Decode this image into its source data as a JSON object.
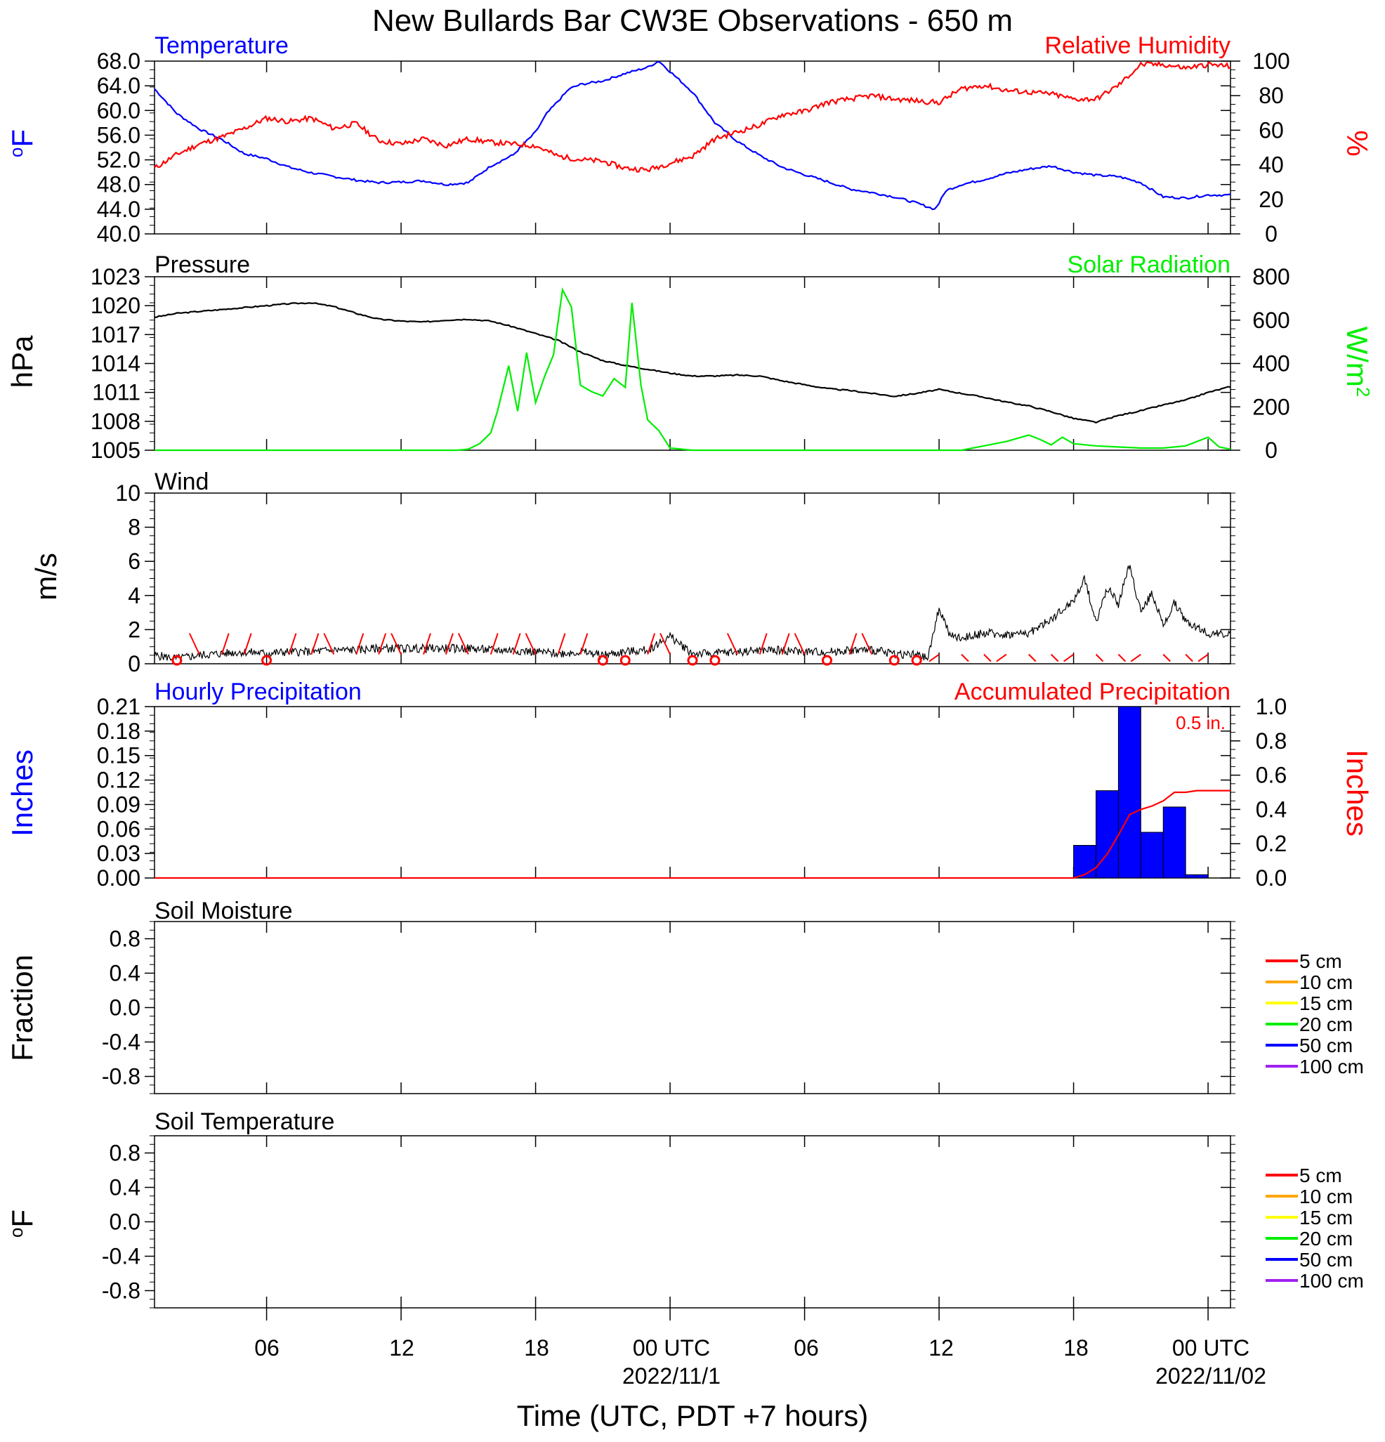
{
  "title": "New Bullards Bar CW3E Observations - 650 m",
  "xaxis": {
    "label": "Time (UTC, PDT +7 hours)",
    "ticks": [
      "06",
      "12",
      "18",
      "00 UTC",
      "06",
      "12",
      "18",
      "00 UTC"
    ],
    "dates": [
      "2022/11/1",
      "2022/11/02"
    ]
  },
  "colors": {
    "temperature": "#0000ff",
    "humidity": "#ff0000",
    "pressure": "#000000",
    "solar": "#00ee00",
    "wind": "#000000",
    "barbs": "#ff0000",
    "precip_bars": "#0000ff",
    "accum": "#ff0000"
  },
  "chart_data": [
    {
      "type": "line",
      "panel": "temperature_humidity",
      "title_left": "Temperature",
      "title_right": "Relative Humidity",
      "ylabel_left": "°F",
      "ylabel_right": "%",
      "y_left_ticks": [
        "68.0",
        "64.0",
        "60.0",
        "56.0",
        "52.0",
        "48.0",
        "44.0",
        "40.0"
      ],
      "y_left_lim": [
        40,
        68
      ],
      "y_right_ticks": [
        "100",
        "80",
        "60",
        "40",
        "20",
        "0"
      ],
      "y_right_lim": [
        0,
        100
      ],
      "x_unit": "hours since 2022-10-31 00 UTC",
      "xlim": [
        1,
        49
      ],
      "series": [
        {
          "name": "Temperature",
          "axis": "left",
          "x": [
            1,
            2,
            3,
            4,
            5,
            6,
            7,
            8,
            9,
            10,
            11,
            12,
            13,
            14,
            15,
            16,
            17,
            18,
            18.5,
            19,
            19.5,
            20,
            21,
            22,
            23,
            23.5,
            24,
            25,
            26,
            27,
            28,
            29,
            30,
            31,
            32,
            33,
            34,
            35,
            35.8,
            36,
            36.3,
            37,
            38,
            39,
            40,
            41,
            42,
            43,
            44,
            45,
            46,
            47,
            48,
            49
          ],
          "y": [
            63.5,
            59.5,
            57.0,
            55.3,
            53.0,
            52.2,
            50.8,
            49.9,
            49.3,
            48.7,
            48.3,
            48.4,
            48.6,
            48.0,
            48.3,
            51.0,
            52.8,
            56.5,
            59.5,
            61.5,
            63.5,
            64.2,
            64.8,
            66.0,
            67.0,
            68.0,
            66.3,
            63.0,
            58.0,
            55.0,
            52.7,
            50.8,
            49.6,
            48.5,
            47.3,
            46.7,
            46.0,
            45.0,
            44.0,
            45.0,
            47.0,
            48.0,
            48.8,
            49.8,
            50.5,
            51.0,
            50.0,
            49.5,
            49.3,
            48.3,
            46.0,
            45.8,
            46.3,
            46.3
          ]
        },
        {
          "name": "Relative Humidity",
          "axis": "right",
          "x": [
            1,
            2,
            3,
            4,
            5,
            6,
            7,
            8,
            9,
            10,
            11,
            12,
            13,
            14,
            15,
            16,
            17,
            18,
            19,
            20,
            21,
            22,
            23,
            24,
            25,
            26,
            27,
            28,
            29,
            30,
            31,
            32,
            33,
            34,
            35,
            36,
            37,
            38,
            39,
            40,
            41,
            42,
            43,
            44,
            45,
            46,
            47,
            48,
            49
          ],
          "y": [
            38,
            46,
            52,
            56,
            61,
            67,
            65,
            67,
            61,
            64,
            54,
            52,
            55,
            51,
            55,
            53,
            52,
            51,
            45,
            43,
            42,
            38,
            37,
            41,
            45,
            55,
            59,
            63,
            69,
            71,
            76,
            78,
            80,
            78,
            77,
            76,
            84,
            86,
            83,
            82,
            81,
            78,
            78,
            86,
            98,
            98,
            96,
            98,
            97
          ]
        }
      ]
    },
    {
      "type": "line",
      "panel": "pressure_solar",
      "title_left": "Pressure",
      "title_right": "Solar Radiation",
      "ylabel_left": "hPa",
      "ylabel_right": "W/m2",
      "y_left_ticks": [
        "1023",
        "1020",
        "1017",
        "1014",
        "1011",
        "1008",
        "1005"
      ],
      "y_left_lim": [
        1005,
        1023
      ],
      "y_right_ticks": [
        "800",
        "600",
        "400",
        "200",
        "0"
      ],
      "y_right_lim": [
        0,
        800
      ],
      "series": [
        {
          "name": "Pressure",
          "axis": "left",
          "x": [
            1,
            2,
            3,
            4,
            5,
            6,
            7,
            8,
            9,
            10,
            11,
            12,
            13,
            14,
            15,
            16,
            17,
            18,
            19,
            20,
            21,
            22,
            23,
            24,
            25,
            26,
            27,
            28,
            29,
            30,
            31,
            32,
            33,
            34,
            35,
            36,
            37,
            38,
            39,
            40,
            41,
            42,
            43,
            44,
            45,
            46,
            47,
            48,
            49
          ],
          "y": [
            1018.8,
            1019.2,
            1019.4,
            1019.6,
            1019.8,
            1020.0,
            1020.2,
            1020.3,
            1019.9,
            1019.2,
            1018.6,
            1018.4,
            1018.3,
            1018.5,
            1018.6,
            1018.4,
            1017.8,
            1017.1,
            1016.4,
            1015.2,
            1014.3,
            1013.8,
            1013.4,
            1013.0,
            1012.7,
            1012.7,
            1012.8,
            1012.7,
            1012.2,
            1011.8,
            1011.4,
            1011.2,
            1010.9,
            1010.6,
            1010.9,
            1011.3,
            1010.9,
            1010.5,
            1010.0,
            1009.6,
            1009.0,
            1008.3,
            1007.9,
            1008.6,
            1009.1,
            1009.7,
            1010.2,
            1011.0,
            1011.6
          ]
        },
        {
          "name": "Solar Radiation",
          "axis": "right",
          "x": [
            1,
            10,
            14.5,
            15,
            15.5,
            16,
            16.3,
            16.8,
            17.2,
            17.6,
            18,
            18.4,
            18.8,
            19.2,
            19.6,
            20,
            20.5,
            21,
            21.5,
            22,
            22.3,
            22.7,
            23,
            23.5,
            24,
            25,
            26,
            27,
            28,
            29,
            30,
            31,
            32,
            33,
            34,
            35,
            36,
            37,
            38,
            39,
            40,
            40.5,
            41,
            41.5,
            42,
            43,
            44,
            45,
            46,
            47,
            48,
            48.5,
            49
          ],
          "y": [
            0,
            0,
            0,
            5,
            30,
            80,
            180,
            390,
            180,
            450,
            220,
            340,
            440,
            740,
            660,
            300,
            270,
            250,
            330,
            290,
            680,
            300,
            140,
            90,
            10,
            0,
            0,
            0,
            0,
            0,
            0,
            0,
            0,
            0,
            0,
            0,
            0,
            0,
            20,
            40,
            70,
            50,
            25,
            60,
            30,
            20,
            15,
            10,
            10,
            20,
            60,
            15,
            5
          ]
        }
      ]
    },
    {
      "type": "line",
      "panel": "wind",
      "title_left": "Wind",
      "ylabel_left": "m/s",
      "y_left_ticks": [
        "10",
        "8",
        "6",
        "4",
        "2",
        "0"
      ],
      "y_left_lim": [
        0,
        10
      ],
      "series": [
        {
          "name": "Wind",
          "x": [
            1,
            2,
            3,
            4,
            5,
            6,
            7,
            8,
            9,
            10,
            11,
            12,
            13,
            14,
            15,
            16,
            17,
            18,
            19,
            20,
            21,
            22,
            23,
            24,
            25,
            26,
            27,
            28,
            29,
            30,
            31,
            32,
            33,
            34,
            35,
            35.5,
            36,
            36.5,
            37,
            38,
            39,
            40,
            41,
            42,
            42.5,
            43,
            43.5,
            44,
            44.5,
            45,
            45.5,
            46,
            46.5,
            47,
            48,
            49
          ],
          "y": [
            0.5,
            0.3,
            0.5,
            0.6,
            0.7,
            0.6,
            0.7,
            0.7,
            0.8,
            0.8,
            0.9,
            0.9,
            0.9,
            0.9,
            0.9,
            0.8,
            0.8,
            0.7,
            0.6,
            0.7,
            0.5,
            0.7,
            0.8,
            1.6,
            0.6,
            0.6,
            0.7,
            0.8,
            0.8,
            0.7,
            0.7,
            0.8,
            0.8,
            0.6,
            0.5,
            0.3,
            3.3,
            1.6,
            1.5,
            1.8,
            1.7,
            1.8,
            2.6,
            3.7,
            5.0,
            2.4,
            4.5,
            3.5,
            5.8,
            3.0,
            4.2,
            2.2,
            3.6,
            2.5,
            1.8,
            1.7
          ]
        }
      ],
      "barb_hours": [
        2,
        3,
        4,
        5,
        6,
        7,
        8,
        9,
        10,
        11,
        12,
        13,
        14,
        15,
        16,
        17,
        18,
        19,
        20,
        21,
        22,
        23,
        24,
        25,
        26,
        27,
        28,
        29,
        30,
        31,
        32,
        33,
        34,
        35,
        36,
        37,
        38,
        39,
        40,
        41,
        42,
        43,
        44,
        45,
        46,
        47,
        48
      ],
      "barb_calm": [
        true,
        false,
        false,
        false,
        true,
        false,
        false,
        false,
        false,
        false,
        false,
        false,
        false,
        false,
        false,
        false,
        false,
        false,
        false,
        true,
        true,
        false,
        false,
        true,
        true,
        false,
        false,
        false,
        false,
        true,
        false,
        false,
        true,
        true,
        false,
        false,
        false,
        false,
        false,
        false,
        false,
        false,
        false,
        false,
        false,
        false,
        false
      ]
    },
    {
      "type": "bar",
      "panel": "precipitation",
      "title_left": "Hourly Precipitation",
      "title_right": "Accumulated Precipitation",
      "annotation": "0.5 in.",
      "ylabel_left": "Inches",
      "ylabel_right": "Inches",
      "y_left_ticks": [
        "0.21",
        "0.18",
        "0.15",
        "0.12",
        "0.09",
        "0.06",
        "0.03",
        "0.00"
      ],
      "y_left_lim": [
        0,
        0.21
      ],
      "y_right_ticks": [
        "1.0",
        "0.8",
        "0.6",
        "0.4",
        "0.2",
        "0.0"
      ],
      "y_right_lim": [
        0,
        1.0
      ],
      "bars": {
        "x_start": [
          42,
          43,
          44,
          45,
          46,
          47
        ],
        "values": [
          0.04,
          0.107,
          0.21,
          0.056,
          0.087,
          0.004
        ]
      },
      "series": [
        {
          "name": "Accumulated Precipitation",
          "axis": "right",
          "x": [
            1,
            42,
            42.5,
            43,
            43.5,
            44,
            44.5,
            45,
            45.5,
            46,
            46.5,
            47,
            47.5,
            48,
            49
          ],
          "y": [
            0,
            0,
            0.02,
            0.06,
            0.14,
            0.25,
            0.37,
            0.4,
            0.42,
            0.45,
            0.5,
            0.5,
            0.51,
            0.51,
            0.51
          ]
        }
      ]
    },
    {
      "type": "line",
      "panel": "soil_moisture",
      "title_left": "Soil Moisture",
      "ylabel_left": "Fraction",
      "y_left_ticks": [
        "0.8",
        "0.4",
        "0.0",
        "-0.4",
        "-0.8"
      ],
      "y_left_lim": [
        -1,
        1
      ],
      "legend": [
        {
          "label": "5 cm",
          "color": "#ff0000"
        },
        {
          "label": "10 cm",
          "color": "#ffa500"
        },
        {
          "label": "15 cm",
          "color": "#ffff00"
        },
        {
          "label": "20 cm",
          "color": "#00ee00"
        },
        {
          "label": "50 cm",
          "color": "#0000ff"
        },
        {
          "label": "100 cm",
          "color": "#a020f0"
        }
      ]
    },
    {
      "type": "line",
      "panel": "soil_temperature",
      "title_left": "Soil Temperature",
      "ylabel_left": "°F",
      "y_left_ticks": [
        "0.8",
        "0.4",
        "0.0",
        "-0.4",
        "-0.8"
      ],
      "y_left_lim": [
        -1,
        1
      ],
      "legend": [
        {
          "label": "5 cm",
          "color": "#ff0000"
        },
        {
          "label": "10 cm",
          "color": "#ffa500"
        },
        {
          "label": "15 cm",
          "color": "#ffff00"
        },
        {
          "label": "20 cm",
          "color": "#00ee00"
        },
        {
          "label": "50 cm",
          "color": "#0000ff"
        },
        {
          "label": "100 cm",
          "color": "#a020f0"
        }
      ]
    }
  ]
}
